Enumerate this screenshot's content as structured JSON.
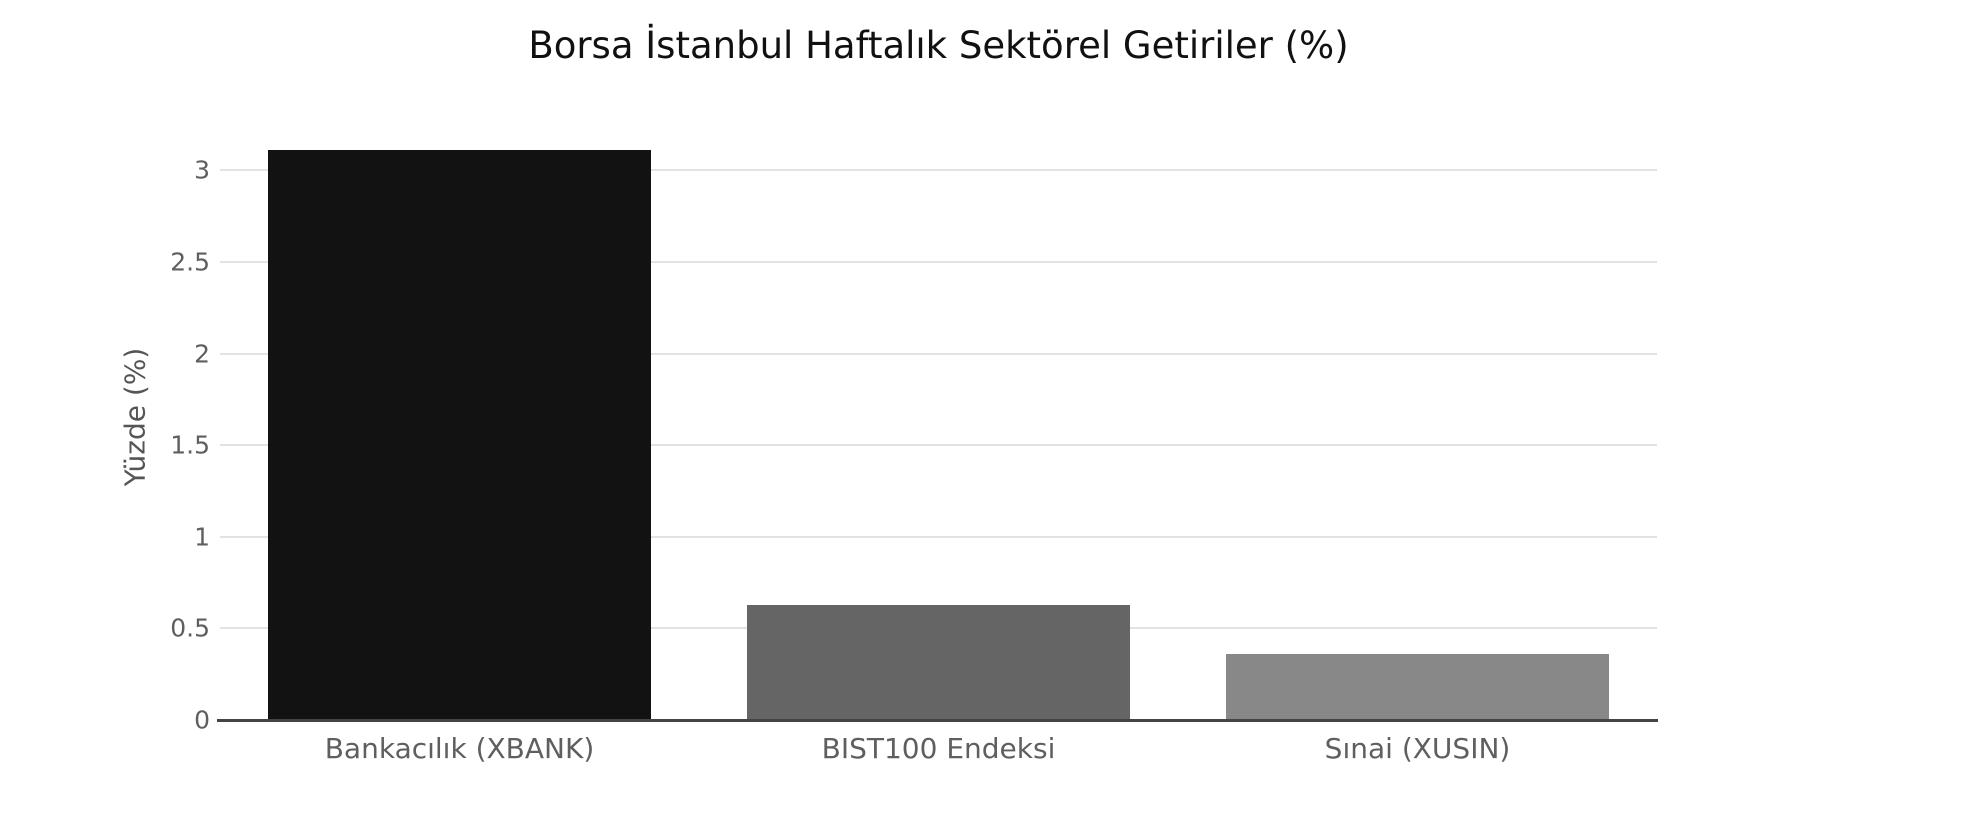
{
  "page": {
    "background_color": "#ffffff"
  },
  "chart_data": {
    "type": "bar",
    "title": "Borsa İstanbul Haftalık Sektörel Getiriler (%)",
    "xlabel": "",
    "ylabel": "Yüzde (%)",
    "categories": [
      "Bankacılık (XBANK)",
      "BIST100 Endeksi",
      "Sınai (XUSIN)"
    ],
    "values": [
      3.11,
      0.63,
      0.36
    ],
    "bar_colors": [
      "#121212",
      "#656565",
      "#888888"
    ],
    "yticks": [
      0,
      0.5,
      1,
      1.5,
      2,
      2.5,
      3
    ],
    "ytick_labels": [
      "0",
      "0.5",
      "1",
      "1.5",
      "2",
      "2.5",
      "3"
    ],
    "ylim": [
      0,
      3.33
    ],
    "grid": "horizontal",
    "legend": "none",
    "colors": {
      "grid": "#e2e2e2",
      "axis_line": "#444444",
      "tick_text": "#5f5f5f",
      "title_text": "#111111",
      "axis_title_text": "#555555"
    }
  }
}
